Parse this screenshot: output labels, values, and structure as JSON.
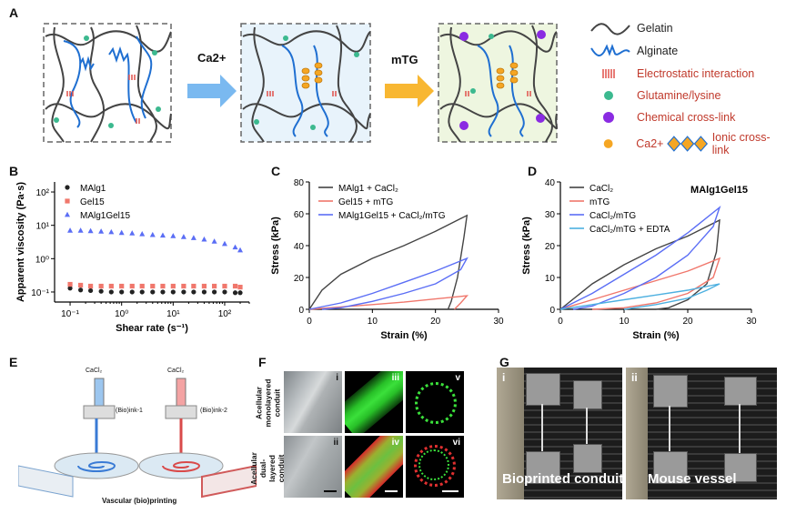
{
  "panels": {
    "A": "A",
    "B": "B",
    "C": "C",
    "D": "D",
    "E": "E",
    "F": "F",
    "G": "G"
  },
  "panelA": {
    "arrow1": "Ca2+",
    "arrow2": "mTG",
    "legend": {
      "gelatin": "Gelatin",
      "alginate": "Alginate",
      "electrostatic": "Electrostatic interaction",
      "glutamine": "Glutamine/lysine",
      "chemical": "Chemical cross-link",
      "ca": "Ca2+",
      "ionic": "Ionic cross-link"
    },
    "colors": {
      "gelatin": "#444444",
      "alginate": "#1f6fd1",
      "electrostatic": "#e0504a",
      "glutamine": "#3cb98f",
      "chemical": "#8a2be2",
      "ca": "#f5a623",
      "box1": "#ffffff",
      "box2": "#e8f3fb",
      "box3": "#eef6e0"
    }
  },
  "chart_data": [
    {
      "panel": "B",
      "type": "scatter",
      "xlabel": "Shear rate (s⁻¹)",
      "ylabel": "Apparent viscosity (Pa·s)",
      "xscale": "log",
      "yscale": "log",
      "xlim": [
        0.05,
        300
      ],
      "ylim": [
        0.05,
        200
      ],
      "xticks": [
        "10⁻¹",
        "10⁰",
        "10¹",
        "10²"
      ],
      "yticks": [
        "10⁻¹",
        "10⁰",
        "10¹",
        "10²"
      ],
      "legend_position": "top-left",
      "series": [
        {
          "name": "MAlg1",
          "color": "#222222",
          "marker": "circle",
          "x": [
            0.1,
            0.16,
            0.25,
            0.4,
            0.63,
            1,
            1.6,
            2.5,
            4,
            6.3,
            10,
            16,
            25,
            40,
            63,
            100,
            160,
            200
          ],
          "y": [
            0.13,
            0.115,
            0.11,
            0.105,
            0.1,
            0.1,
            0.1,
            0.1,
            0.1,
            0.1,
            0.1,
            0.1,
            0.1,
            0.1,
            0.1,
            0.1,
            0.095,
            0.095
          ]
        },
        {
          "name": "Gel15",
          "color": "#f0776c",
          "marker": "square",
          "x": [
            0.1,
            0.16,
            0.25,
            0.4,
            0.63,
            1,
            1.6,
            2.5,
            4,
            6.3,
            10,
            16,
            25,
            40,
            63,
            100,
            160,
            200
          ],
          "y": [
            0.17,
            0.16,
            0.15,
            0.15,
            0.15,
            0.15,
            0.15,
            0.15,
            0.15,
            0.15,
            0.15,
            0.15,
            0.15,
            0.15,
            0.15,
            0.15,
            0.15,
            0.14
          ]
        },
        {
          "name": "MAlg1Gel15",
          "color": "#5b6ef5",
          "marker": "triangle",
          "x": [
            0.1,
            0.16,
            0.25,
            0.4,
            0.63,
            1,
            1.6,
            2.5,
            4,
            6.3,
            10,
            16,
            25,
            40,
            63,
            100,
            160,
            200
          ],
          "y": [
            7.0,
            7.0,
            6.8,
            6.6,
            6.3,
            6.0,
            5.8,
            5.5,
            5.2,
            5.0,
            4.8,
            4.5,
            4.2,
            3.8,
            3.3,
            2.8,
            2.2,
            1.8
          ]
        }
      ]
    },
    {
      "panel": "C",
      "type": "line",
      "xlabel": "Strain (%)",
      "ylabel": "Stress (kPa)",
      "xlim": [
        0,
        30
      ],
      "ylim": [
        0,
        80
      ],
      "xticks": [
        0,
        10,
        20,
        30
      ],
      "yticks": [
        0,
        20,
        40,
        60,
        80
      ],
      "legend_position": "top-left",
      "series": [
        {
          "name": "MAlg1 + CaCl₂",
          "color": "#444444",
          "x": [
            0,
            2,
            5,
            10,
            15,
            20,
            24,
            25,
            24.5,
            23.5,
            22.5,
            22
          ],
          "y": [
            0,
            12,
            22,
            32,
            40,
            49,
            57,
            59,
            45,
            20,
            5,
            0
          ]
        },
        {
          "name": "Gel15 + mTG",
          "color": "#f0776c",
          "x": [
            0,
            5,
            10,
            15,
            20,
            25,
            25,
            24,
            23
          ],
          "y": [
            0,
            1.5,
            3,
            4.5,
            6.5,
            8.5,
            8.5,
            4,
            0
          ]
        },
        {
          "name": "MAlg1Gel15 + CaCl₂/mTG",
          "color": "#5b6ef5",
          "x": [
            0,
            5,
            10,
            15,
            20,
            25,
            24,
            20,
            15,
            10,
            5,
            2
          ],
          "y": [
            0,
            4,
            10,
            17,
            24,
            32,
            25,
            16,
            10,
            5,
            1,
            0
          ]
        }
      ]
    },
    {
      "panel": "D",
      "type": "line",
      "title": "MAlg1Gel15",
      "xlabel": "Strain (%)",
      "ylabel": "Stress (kPa)",
      "xlim": [
        0,
        30
      ],
      "ylim": [
        0,
        40
      ],
      "xticks": [
        0,
        10,
        20,
        30
      ],
      "yticks": [
        0,
        10,
        20,
        30,
        40
      ],
      "legend_position": "top-left",
      "series": [
        {
          "name": "CaCl₂",
          "color": "#444444",
          "x": [
            0,
            5,
            10,
            15,
            20,
            25,
            24.5,
            23,
            20,
            17,
            15
          ],
          "y": [
            0,
            8,
            14,
            19,
            23,
            28,
            18,
            8,
            3,
            0.5,
            0
          ]
        },
        {
          "name": "mTG",
          "color": "#f0776c",
          "x": [
            0,
            5,
            10,
            15,
            20,
            25,
            24,
            20,
            15,
            10,
            5
          ],
          "y": [
            0,
            3,
            6,
            9,
            12,
            16,
            10,
            5,
            2,
            0.5,
            0
          ]
        },
        {
          "name": "CaCl₂/mTG",
          "color": "#5b6ef5",
          "x": [
            0,
            5,
            10,
            15,
            20,
            25,
            24,
            20,
            15,
            10,
            5,
            2
          ],
          "y": [
            0,
            5,
            11,
            17,
            24,
            32,
            26,
            17,
            10,
            5,
            1,
            0
          ]
        },
        {
          "name": "CaCl₂/mTG + EDTA",
          "color": "#4db0e0",
          "x": [
            0,
            5,
            10,
            15,
            20,
            25,
            23,
            20,
            15,
            10
          ],
          "y": [
            0,
            1.5,
            3,
            4.5,
            6,
            8,
            6,
            3.5,
            1.5,
            0
          ]
        }
      ]
    }
  ],
  "panelE": {
    "left_label": "CaCl₂",
    "right_label": "CaCl₂",
    "ink1": "(Bio)ink-1",
    "ink2": "(Bio)ink-2",
    "caption": "Vascular (bio)printing"
  },
  "panelF": {
    "row1_label": "Acellular monolayered conduit",
    "row2_label": "Acellular dual-layered conduit",
    "roman": [
      "i",
      "iii",
      "v",
      "ii",
      "iv",
      "vi"
    ]
  },
  "panelG": {
    "roman_left": "i",
    "roman_right": "ii",
    "left_caption": "Bioprinted conduit",
    "right_caption": "Mouse vessel"
  }
}
